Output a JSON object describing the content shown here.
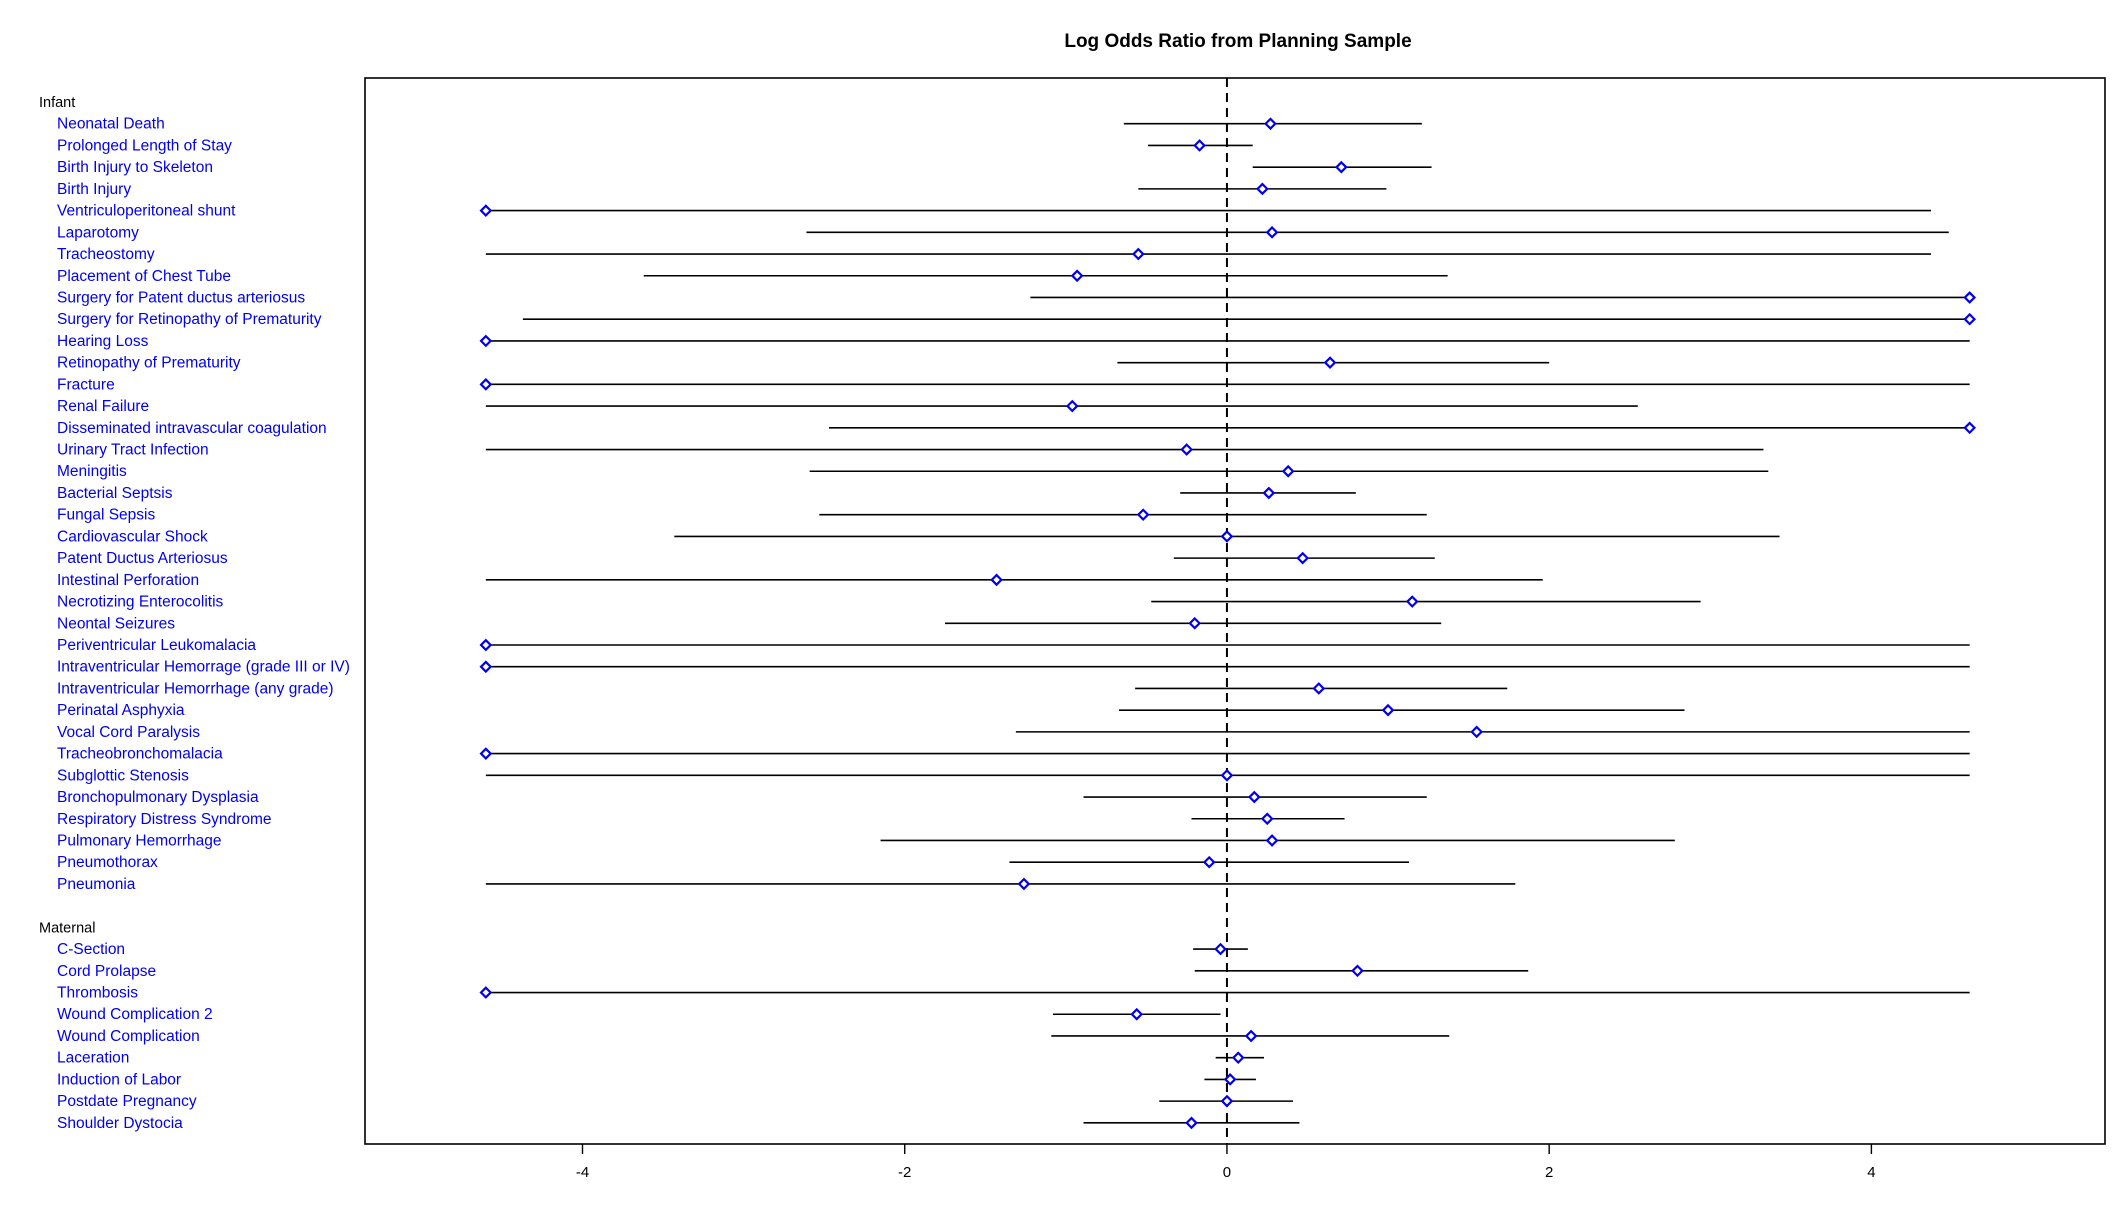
{
  "chart_data": {
    "type": "forest",
    "title": "Log Odds Ratio from Planning Sample",
    "xlabel": "",
    "ylabel": "",
    "xlim": [
      -5.35,
      5.45
    ],
    "xticks": [
      -4,
      -2,
      0,
      2,
      4
    ],
    "xtick_labels": [
      "-4",
      "-2",
      "0",
      "2",
      "4"
    ],
    "reference_line": 0,
    "colors": {
      "label": "#0000ee",
      "point": "#0000ee",
      "line": "#000000"
    },
    "groups": [
      {
        "name": "Infant",
        "rows": [
          {
            "label": "Neonatal Death",
            "estimate": 0.27,
            "lower": -0.64,
            "upper": 1.21
          },
          {
            "label": "Prolonged Length of Stay",
            "estimate": -0.17,
            "lower": -0.49,
            "upper": 0.16
          },
          {
            "label": "Birth Injury to Skeleton",
            "estimate": 0.71,
            "lower": 0.16,
            "upper": 1.27
          },
          {
            "label": "Birth Injury",
            "estimate": 0.22,
            "lower": -0.55,
            "upper": 0.99
          },
          {
            "label": "Ventriculoperitoneal shunt",
            "estimate": -4.6,
            "lower": -4.6,
            "upper": 4.37
          },
          {
            "label": "Laparotomy",
            "estimate": 0.28,
            "lower": -2.61,
            "upper": 4.48
          },
          {
            "label": "Tracheostomy",
            "estimate": -0.55,
            "lower": -4.6,
            "upper": 4.37
          },
          {
            "label": "Placement of Chest Tube",
            "estimate": -0.93,
            "lower": -3.62,
            "upper": 1.37
          },
          {
            "label": "Surgery for Patent ductus arteriosus",
            "estimate": 4.61,
            "lower": -1.22,
            "upper": 4.61
          },
          {
            "label": "Surgery for Retinopathy of Prematurity",
            "estimate": 4.61,
            "lower": -4.37,
            "upper": 4.61
          },
          {
            "label": "Hearing Loss",
            "estimate": -4.6,
            "lower": -4.6,
            "upper": 4.61
          },
          {
            "label": "Retinopathy of Prematurity",
            "estimate": 0.64,
            "lower": -0.68,
            "upper": 2.0
          },
          {
            "label": "Fracture",
            "estimate": -4.6,
            "lower": -4.6,
            "upper": 4.61
          },
          {
            "label": "Renal Failure",
            "estimate": -0.96,
            "lower": -4.6,
            "upper": 2.55
          },
          {
            "label": "Disseminated intravascular coagulation",
            "estimate": 4.61,
            "lower": -2.47,
            "upper": 4.61
          },
          {
            "label": "Urinary Tract Infection",
            "estimate": -0.25,
            "lower": -4.6,
            "upper": 3.33
          },
          {
            "label": "Meningitis",
            "estimate": 0.38,
            "lower": -2.59,
            "upper": 3.36
          },
          {
            "label": "Bacterial Septsis",
            "estimate": 0.26,
            "lower": -0.29,
            "upper": 0.8
          },
          {
            "label": "Fungal Sepsis",
            "estimate": -0.52,
            "lower": -2.53,
            "upper": 1.24
          },
          {
            "label": "Cardiovascular Shock",
            "estimate": 0.0,
            "lower": -3.43,
            "upper": 3.43
          },
          {
            "label": "Patent Ductus Arteriosus",
            "estimate": 0.47,
            "lower": -0.33,
            "upper": 1.29
          },
          {
            "label": "Intestinal Perforation",
            "estimate": -1.43,
            "lower": -4.6,
            "upper": 1.96
          },
          {
            "label": "Necrotizing Enterocolitis",
            "estimate": 1.15,
            "lower": -0.47,
            "upper": 2.94
          },
          {
            "label": "Neontal Seizures",
            "estimate": -0.2,
            "lower": -1.75,
            "upper": 1.33
          },
          {
            "label": "Periventricular Leukomalacia",
            "estimate": -4.6,
            "lower": -4.6,
            "upper": 4.61
          },
          {
            "label": "Intraventricular Hemorrage (grade III or IV)",
            "estimate": -4.6,
            "lower": -4.6,
            "upper": 4.61
          },
          {
            "label": "Intraventricular Hemorrhage (any grade)",
            "estimate": 0.57,
            "lower": -0.57,
            "upper": 1.74
          },
          {
            "label": "Perinatal Asphyxia",
            "estimate": 1.0,
            "lower": -0.67,
            "upper": 2.84
          },
          {
            "label": "Vocal Cord Paralysis",
            "estimate": 1.55,
            "lower": -1.31,
            "upper": 4.61
          },
          {
            "label": "Tracheobronchomalacia",
            "estimate": -4.6,
            "lower": -4.6,
            "upper": 4.61
          },
          {
            "label": "Subglottic Stenosis",
            "estimate": 0.0,
            "lower": -4.6,
            "upper": 4.61
          },
          {
            "label": "Bronchopulmonary Dysplasia",
            "estimate": 0.17,
            "lower": -0.89,
            "upper": 1.24
          },
          {
            "label": "Respiratory Distress Syndrome",
            "estimate": 0.25,
            "lower": -0.22,
            "upper": 0.73
          },
          {
            "label": "Pulmonary Hemorrhage",
            "estimate": 0.28,
            "lower": -2.15,
            "upper": 2.78
          },
          {
            "label": "Pneumothorax",
            "estimate": -0.11,
            "lower": -1.35,
            "upper": 1.13
          },
          {
            "label": "Pneumonia",
            "estimate": -1.26,
            "lower": -4.6,
            "upper": 1.79
          }
        ]
      },
      {
        "name": "Maternal",
        "rows": [
          {
            "label": "C-Section",
            "estimate": -0.04,
            "lower": -0.21,
            "upper": 0.13
          },
          {
            "label": "Cord Prolapse",
            "estimate": 0.81,
            "lower": -0.2,
            "upper": 1.87
          },
          {
            "label": "Thrombosis",
            "estimate": -4.6,
            "lower": -4.6,
            "upper": 4.61
          },
          {
            "label": "Wound Complication 2",
            "estimate": -0.56,
            "lower": -1.08,
            "upper": -0.04
          },
          {
            "label": "Wound Complication",
            "estimate": 0.15,
            "lower": -1.09,
            "upper": 1.38
          },
          {
            "label": "Laceration",
            "estimate": 0.07,
            "lower": -0.07,
            "upper": 0.23
          },
          {
            "label": "Induction of Labor",
            "estimate": 0.02,
            "lower": -0.14,
            "upper": 0.18
          },
          {
            "label": "Postdate Pregnancy",
            "estimate": 0.0,
            "lower": -0.42,
            "upper": 0.41
          },
          {
            "label": "Shoulder Dystocia",
            "estimate": -0.22,
            "lower": -0.89,
            "upper": 0.45
          }
        ]
      }
    ]
  }
}
